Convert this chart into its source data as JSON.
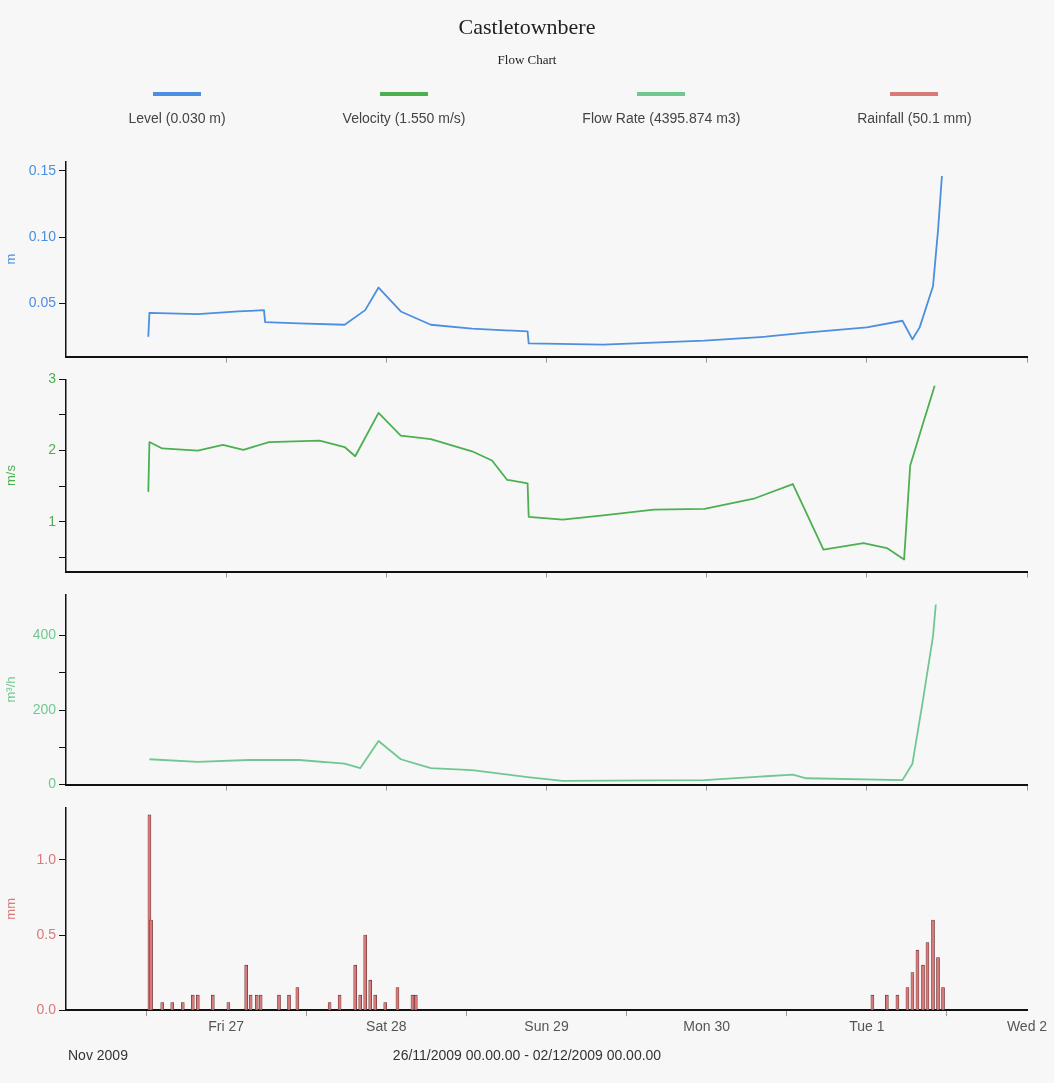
{
  "chart_data": [
    {
      "type": "line",
      "title": "Castletownbere",
      "subtitle": "Flow Chart",
      "ylabel": "m",
      "legend": "top",
      "marker": "none",
      "tick_labels": "y",
      "xlim": [
        "2009-11-26",
        "2009-12-02"
      ],
      "xticks": [
        {
          "value": "2009-11-27",
          "label": null
        },
        {
          "value": "2009-11-28",
          "label": null
        },
        {
          "value": "2009-11-29",
          "label": null
        },
        {
          "value": "2009-11-30",
          "label": null
        },
        {
          "value": "2009-12-01",
          "label": null
        },
        {
          "value": "2009-12-02",
          "label": null
        }
      ],
      "ylim": [
        0.01,
        0.157
      ],
      "yticks": [
        0.05,
        {
          "value": 0.1,
          "label": "0.10"
        },
        0.15
      ],
      "series": [
        {
          "name": "Level (0.030 m)",
          "color": "#4a8fe0",
          "x": [
            "2009-11-26T12:20",
            "2009-11-26T12:30",
            "2009-11-26T19:45",
            "2009-11-27T01:50",
            "2009-11-27T05:40",
            "2009-11-27T05:50",
            "2009-11-27T10:55",
            "2009-11-27T17:45",
            "2009-11-27T20:50",
            "2009-11-27T22:50",
            "2009-11-28T02:10",
            "2009-11-28T06:40",
            "2009-11-28T12:50",
            "2009-11-28T21:10",
            "2009-11-28T21:20",
            "2009-11-29T08:30",
            "2009-11-29T23:40",
            "2009-11-30T08:50",
            "2009-11-30T14:55",
            "2009-12-01T00:00",
            "2009-12-01T05:20",
            "2009-12-01T06:50",
            "2009-12-01T07:55",
            "2009-12-01T09:55",
            "2009-12-01T10:40",
            "2009-12-01T11:15"
          ],
          "values": [
            0.025,
            0.043,
            0.042,
            0.044,
            0.045,
            0.036,
            0.035,
            0.034,
            0.045,
            0.062,
            0.044,
            0.034,
            0.031,
            0.029,
            0.02,
            0.019,
            0.022,
            0.025,
            0.028,
            0.032,
            0.037,
            0.023,
            0.032,
            0.063,
            0.105,
            0.146
          ]
        }
      ]
    },
    {
      "type": "line",
      "ylabel": "m/s",
      "legend": "top",
      "marker": "none",
      "tick_labels": "y",
      "xlim": [
        "2009-11-26",
        "2009-12-02"
      ],
      "xticks": [
        {
          "value": "2009-11-27",
          "label": null
        },
        {
          "value": "2009-11-28",
          "label": null
        },
        {
          "value": "2009-11-29",
          "label": null
        },
        {
          "value": "2009-11-30",
          "label": null
        },
        {
          "value": "2009-12-01",
          "label": null
        },
        {
          "value": "2009-12-02",
          "label": null
        }
      ],
      "ylim": [
        0.3,
        3
      ],
      "yticks": [
        {
          "value": 0.5,
          "label": null
        },
        1,
        {
          "value": 1.5,
          "label": null
        },
        2,
        {
          "value": 2.5,
          "label": null
        },
        3
      ],
      "series": [
        {
          "name": "Velocity (1.550 m/s)",
          "color": "#4cb050",
          "x": [
            "2009-11-26T12:20",
            "2009-11-26T12:30",
            "2009-11-26T14:25",
            "2009-11-26T19:45",
            "2009-11-26T23:30",
            "2009-11-27T02:35",
            "2009-11-27T06:25",
            "2009-11-27T14:00",
            "2009-11-27T17:45",
            "2009-11-27T19:20",
            "2009-11-27T20:05",
            "2009-11-27T22:50",
            "2009-11-28T02:10",
            "2009-11-28T06:40",
            "2009-11-28T12:50",
            "2009-11-28T15:50",
            "2009-11-28T18:05",
            "2009-11-28T21:10",
            "2009-11-28T21:20",
            "2009-11-29T02:25",
            "2009-11-29T08:30",
            "2009-11-29T16:05",
            "2009-11-29T23:40",
            "2009-11-30T07:15",
            "2009-11-30T12:55",
            "2009-11-30T17:30",
            "2009-11-30T23:30",
            "2009-12-01T03:00",
            "2009-12-01T05:35",
            "2009-12-01T06:30",
            "2009-12-01T08:25",
            "2009-12-01T10:10"
          ],
          "values": [
            1.42,
            2.12,
            2.03,
            2.0,
            2.08,
            2.01,
            2.12,
            2.14,
            2.05,
            1.92,
            2.05,
            2.53,
            2.21,
            2.16,
            1.99,
            1.86,
            1.59,
            1.54,
            1.07,
            1.03,
            1.09,
            1.17,
            1.18,
            1.33,
            1.53,
            0.61,
            0.7,
            0.63,
            0.47,
            1.79,
            2.38,
            2.91
          ]
        }
      ]
    },
    {
      "type": "line",
      "ylabel": "m³/h",
      "legend": "top",
      "marker": "none",
      "tick_labels": "y",
      "xlim": [
        "2009-11-26",
        "2009-12-02"
      ],
      "xticks": [
        {
          "value": "2009-11-27",
          "label": null
        },
        {
          "value": "2009-11-28",
          "label": null
        },
        {
          "value": "2009-11-29",
          "label": null
        },
        {
          "value": "2009-11-30",
          "label": null
        },
        {
          "value": "2009-12-01",
          "label": null
        },
        {
          "value": "2009-12-02",
          "label": null
        }
      ],
      "ylim": [
        0,
        510
      ],
      "yticks": [
        0,
        {
          "value": 100,
          "label": null
        },
        200,
        {
          "value": 300,
          "label": null
        },
        400
      ],
      "series": [
        {
          "name": "Flow Rate (4395.874 m3)",
          "color": "#70c890",
          "x": [
            "2009-11-26T12:30",
            "2009-11-26T19:45",
            "2009-11-27T03:20",
            "2009-11-27T10:55",
            "2009-11-27T17:45",
            "2009-11-27T20:05",
            "2009-11-27T22:50",
            "2009-11-28T02:10",
            "2009-11-28T06:40",
            "2009-11-28T12:50",
            "2009-11-28T21:10",
            "2009-11-29T02:25",
            "2009-11-29T23:40",
            "2009-11-30T12:55",
            "2009-11-30T14:55",
            "2009-12-01T05:20",
            "2009-12-01T06:50",
            "2009-12-01T08:25",
            "2009-12-01T09:55",
            "2009-12-01T10:20"
          ],
          "values": [
            68,
            61,
            66,
            66,
            56,
            44,
            117,
            68,
            44,
            39,
            20,
            10,
            12,
            27,
            17,
            12,
            56,
            227,
            398,
            483
          ]
        }
      ]
    },
    {
      "type": "bar",
      "ylabel": "mm",
      "xlabel": "26/11/2009 00.00.00 - 02/12/2009 00.00.00",
      "legend": "top",
      "annotations": [
        "Nov 2009"
      ],
      "xlim": [
        "2009-11-26",
        "2009-12-02"
      ],
      "xticks": [
        {
          "value": "2009-11-27",
          "label": "Fri 27"
        },
        {
          "value": "2009-11-28",
          "label": "Sat 28"
        },
        {
          "value": "2009-11-29",
          "label": "Sun 29"
        },
        {
          "value": "2009-11-30",
          "label": "Mon 30"
        },
        {
          "value": "2009-12-01",
          "label": "Tue 1"
        },
        {
          "value": "2009-12-02",
          "label": "Wed 2"
        }
      ],
      "ylim": [
        0,
        1.35
      ],
      "yticks": [
        {
          "value": 0,
          "label": "0.0"
        },
        0.5,
        {
          "value": 1,
          "label": "1.0"
        }
      ],
      "series": [
        {
          "name": "Rainfall (50.1 mm)",
          "color": "#d87a7a",
          "x": [
            "2009-11-26T12:30",
            "2009-11-26T12:45",
            "2009-11-26T14:25",
            "2009-11-26T15:55",
            "2009-11-26T17:30",
            "2009-11-26T19:00",
            "2009-11-26T19:45",
            "2009-11-26T22:00",
            "2009-11-27T00:20",
            "2009-11-27T03:00",
            "2009-11-27T03:40",
            "2009-11-27T04:35",
            "2009-11-27T05:10",
            "2009-11-27T07:55",
            "2009-11-27T09:25",
            "2009-11-27T10:40",
            "2009-11-27T15:30",
            "2009-11-27T17:00",
            "2009-11-27T19:20",
            "2009-11-27T20:05",
            "2009-11-27T20:50",
            "2009-11-27T21:35",
            "2009-11-27T22:20",
            "2009-11-27T23:50",
            "2009-11-28T01:40",
            "2009-11-28T03:55",
            "2009-11-28T04:25",
            "2009-12-01T00:50",
            "2009-12-01T03:00",
            "2009-12-01T04:35",
            "2009-12-01T06:05",
            "2009-12-01T06:50",
            "2009-12-01T07:35",
            "2009-12-01T08:25",
            "2009-12-01T09:05",
            "2009-12-01T09:55",
            "2009-12-01T10:40",
            "2009-12-01T11:25"
          ],
          "values": [
            1.3,
            0.6,
            0.05,
            0.05,
            0.05,
            0.1,
            0.1,
            0.1,
            0.05,
            0.3,
            0.1,
            0.1,
            0.1,
            0.1,
            0.1,
            0.15,
            0.05,
            0.1,
            0.3,
            0.1,
            0.5,
            0.2,
            0.1,
            0.05,
            0.15,
            0.1,
            0.1,
            0.1,
            0.1,
            0.1,
            0.15,
            0.25,
            0.4,
            0.3,
            0.45,
            0.6,
            0.35,
            0.15
          ]
        }
      ]
    }
  ]
}
